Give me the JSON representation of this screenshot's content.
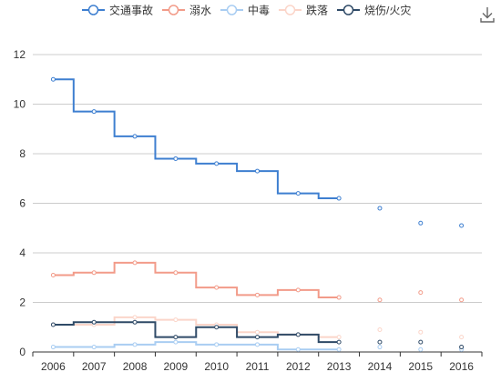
{
  "toolbar": {
    "download_icon": "download-icon"
  },
  "colors": {
    "axis": "#333333",
    "grid": "#cccccc",
    "background": "#ffffff"
  },
  "chart_data": {
    "type": "line",
    "step": "middle",
    "title": "",
    "xlabel": "",
    "ylabel": "",
    "categories": [
      "2006",
      "2007",
      "2008",
      "2009",
      "2010",
      "2011",
      "2012",
      "2013",
      "2014",
      "2015",
      "2016"
    ],
    "ylim": [
      0,
      12
    ],
    "yticks": [
      0,
      2,
      4,
      6,
      8,
      10,
      12
    ],
    "grid": "horizontal",
    "legend_position": "top-center",
    "series": [
      {
        "name": "交通事故",
        "color": "#3e7fd0",
        "values": [
          11.0,
          9.7,
          8.7,
          7.8,
          7.6,
          7.3,
          6.4,
          6.2,
          5.8,
          5.2,
          5.1
        ]
      },
      {
        "name": "溺水",
        "color": "#f29b89",
        "values": [
          3.1,
          3.2,
          3.6,
          3.2,
          2.6,
          2.3,
          2.5,
          2.2,
          2.1,
          2.4,
          2.1
        ]
      },
      {
        "name": "中毒",
        "color": "#a9cdf2",
        "values": [
          0.2,
          0.2,
          0.3,
          0.4,
          0.3,
          0.3,
          0.1,
          0.1,
          0.2,
          0.1,
          0.1
        ]
      },
      {
        "name": "跌落",
        "color": "#fbd5c9",
        "values": [
          1.1,
          1.1,
          1.4,
          1.3,
          1.1,
          0.8,
          0.7,
          0.6,
          0.9,
          0.8,
          0.6
        ]
      },
      {
        "name": "烧伤/火灾",
        "color": "#2f4a67",
        "values": [
          1.1,
          1.2,
          1.2,
          0.6,
          1.0,
          0.6,
          0.7,
          0.4,
          0.4,
          0.4,
          0.2
        ]
      }
    ],
    "connected_points": 8
  }
}
